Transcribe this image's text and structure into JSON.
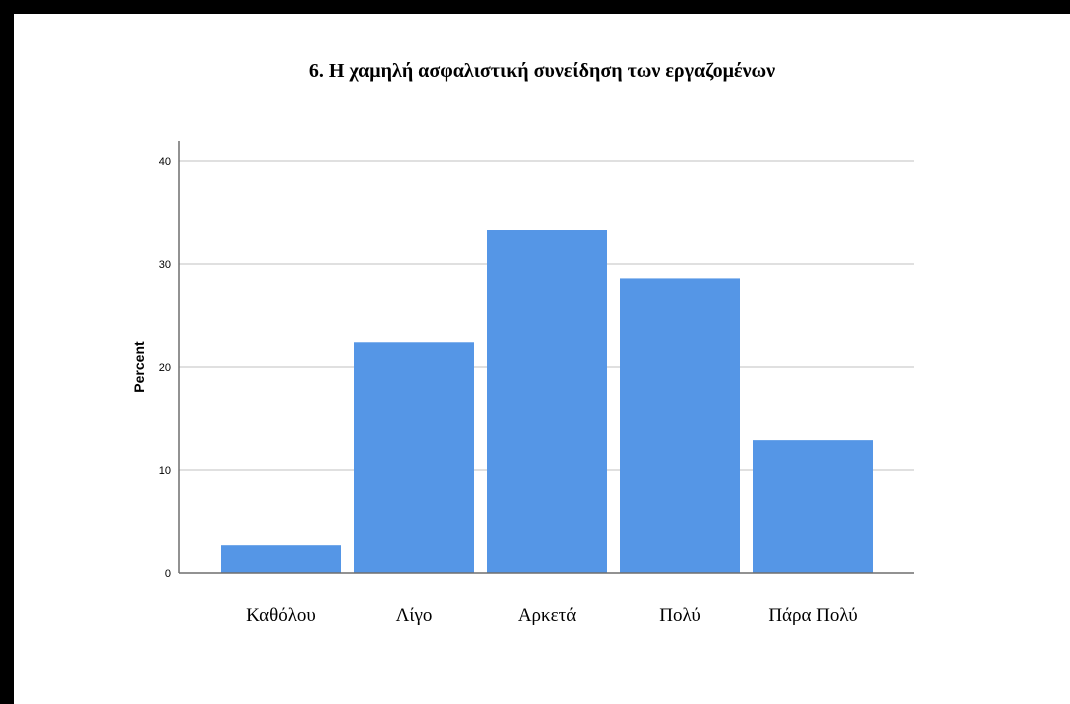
{
  "chart_data": {
    "type": "bar",
    "title": "6. Η χαμηλή ασφαλιστική συνείδηση των εργαζομένων",
    "xlabel": "",
    "ylabel": "Percent",
    "categories": [
      "Καθόλου",
      "Λίγο",
      "Αρκετά",
      "Πολύ",
      "Πάρα Πολύ"
    ],
    "values": [
      2.7,
      22.4,
      33.3,
      28.6,
      12.9
    ],
    "ylim": [
      0,
      40
    ],
    "yticks": [
      0,
      10,
      20,
      30,
      40
    ],
    "grid": true,
    "bar_color": "#5596e6",
    "grid_color": "#d6d6d6",
    "axis_color": "#6e6e6e"
  }
}
